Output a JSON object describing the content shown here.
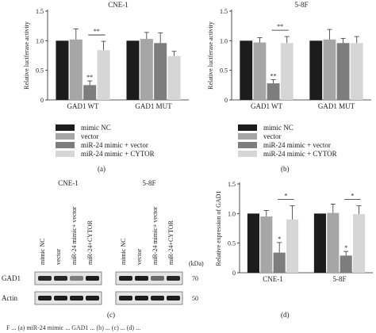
{
  "colors": {
    "mimic_nc": "#1c1c1c",
    "vector": "#a6a6a6",
    "mir24_vector": "#7d7d7d",
    "mir24_cytor": "#d6d6d6"
  },
  "legend": [
    "mimic NC",
    "vector",
    "miR-24 mimic + vector",
    "miR-24 mimic + CYTOR"
  ],
  "panel_labels": {
    "a": "(a)",
    "b": "(b)",
    "c": "(c)",
    "d": "(d)"
  },
  "significance": {
    "double": "**",
    "single": "*"
  },
  "chart_data": [
    {
      "type": "bar",
      "title": "CNE-1",
      "ylabel": "Relative luciferase activity",
      "ylim": [
        0,
        1.5
      ],
      "yticks": [
        "0",
        "0.5",
        "1.0",
        "1.5"
      ],
      "categories": [
        "GAD1 WT",
        "GAD1 MUT"
      ],
      "series": [
        {
          "name": "mimic NC",
          "values": [
            1.0,
            1.0
          ]
        },
        {
          "name": "vector",
          "values": [
            1.02,
            1.03
          ]
        },
        {
          "name": "miR-24 mimic + vector",
          "values": [
            0.25,
            0.96
          ]
        },
        {
          "name": "miR-24 mimic + CYTOR",
          "values": [
            0.84,
            0.74
          ]
        }
      ],
      "errors": [
        [
          0,
          0
        ],
        [
          0.18,
          0.11
        ],
        [
          0.07,
          0.17
        ],
        [
          0.15,
          0.08
        ]
      ],
      "stars": [
        "",
        "",
        "**",
        ""
      ],
      "bracket": "**"
    },
    {
      "type": "bar",
      "title": "5-8F",
      "ylabel": "Relative luciferase activity",
      "ylim": [
        0,
        1.5
      ],
      "yticks": [
        "0",
        "0.5",
        "1.0",
        "1.5"
      ],
      "categories": [
        "GAD1 WT",
        "GAD1 MUT"
      ],
      "series": [
        {
          "name": "mimic NC",
          "values": [
            1.0,
            1.0
          ]
        },
        {
          "name": "vector",
          "values": [
            0.97,
            1.02
          ]
        },
        {
          "name": "miR-24 mimic + vector",
          "values": [
            0.28,
            0.96
          ]
        },
        {
          "name": "miR-24 mimic + CYTOR",
          "values": [
            0.96,
            0.96
          ]
        }
      ],
      "errors": [
        [
          0,
          0
        ],
        [
          0.08,
          0.17
        ],
        [
          0.06,
          0.08
        ],
        [
          0.11,
          0.11
        ]
      ],
      "stars": [
        "",
        "",
        "**",
        ""
      ],
      "bracket": "**"
    },
    {
      "type": "bar",
      "title": "",
      "ylabel": "Relative expression of GAD1",
      "ylim": [
        0,
        1.5
      ],
      "yticks": [
        "0",
        "0.5",
        "1.0",
        "1.5"
      ],
      "categories": [
        "CNE-1",
        "5-8F"
      ],
      "series": [
        {
          "name": "mimic NC",
          "values": [
            1.0,
            1.0
          ]
        },
        {
          "name": "vector",
          "values": [
            0.95,
            1.01
          ]
        },
        {
          "name": "miR-24 mimic + vector",
          "values": [
            0.34,
            0.29
          ]
        },
        {
          "name": "miR-24 mimic + CYTOR",
          "values": [
            0.9,
            0.99
          ]
        }
      ],
      "errors": [
        [
          0,
          0
        ],
        [
          0.1,
          0.15
        ],
        [
          0.17,
          0.07
        ],
        [
          0.23,
          0.14
        ]
      ],
      "stars": [
        "",
        "",
        "*",
        ""
      ],
      "bracket": "*"
    }
  ],
  "blot": {
    "cell_lines": [
      "CNE-1",
      "5-8F"
    ],
    "lanes": [
      "mimic NC",
      "vector",
      "miR-24 mimic+ vector",
      "miR-24+CYTOR"
    ],
    "kda_label": "(kDa)",
    "rows": [
      {
        "label": "GAD1",
        "kda": "70",
        "intensity": [
          [
            0.85,
            0.85,
            0.4,
            0.9
          ],
          [
            0.9,
            0.9,
            0.5,
            0.85
          ]
        ]
      },
      {
        "label": "Actin",
        "kda": "50",
        "intensity": [
          [
            0.9,
            0.9,
            0.9,
            0.9
          ],
          [
            0.9,
            0.9,
            0.9,
            0.9
          ]
        ]
      }
    ]
  },
  "caption": "F        ...  (a) miR-24 mimic  ...  GAD1  ...  (b) ...  (c) ...  (d) ..."
}
